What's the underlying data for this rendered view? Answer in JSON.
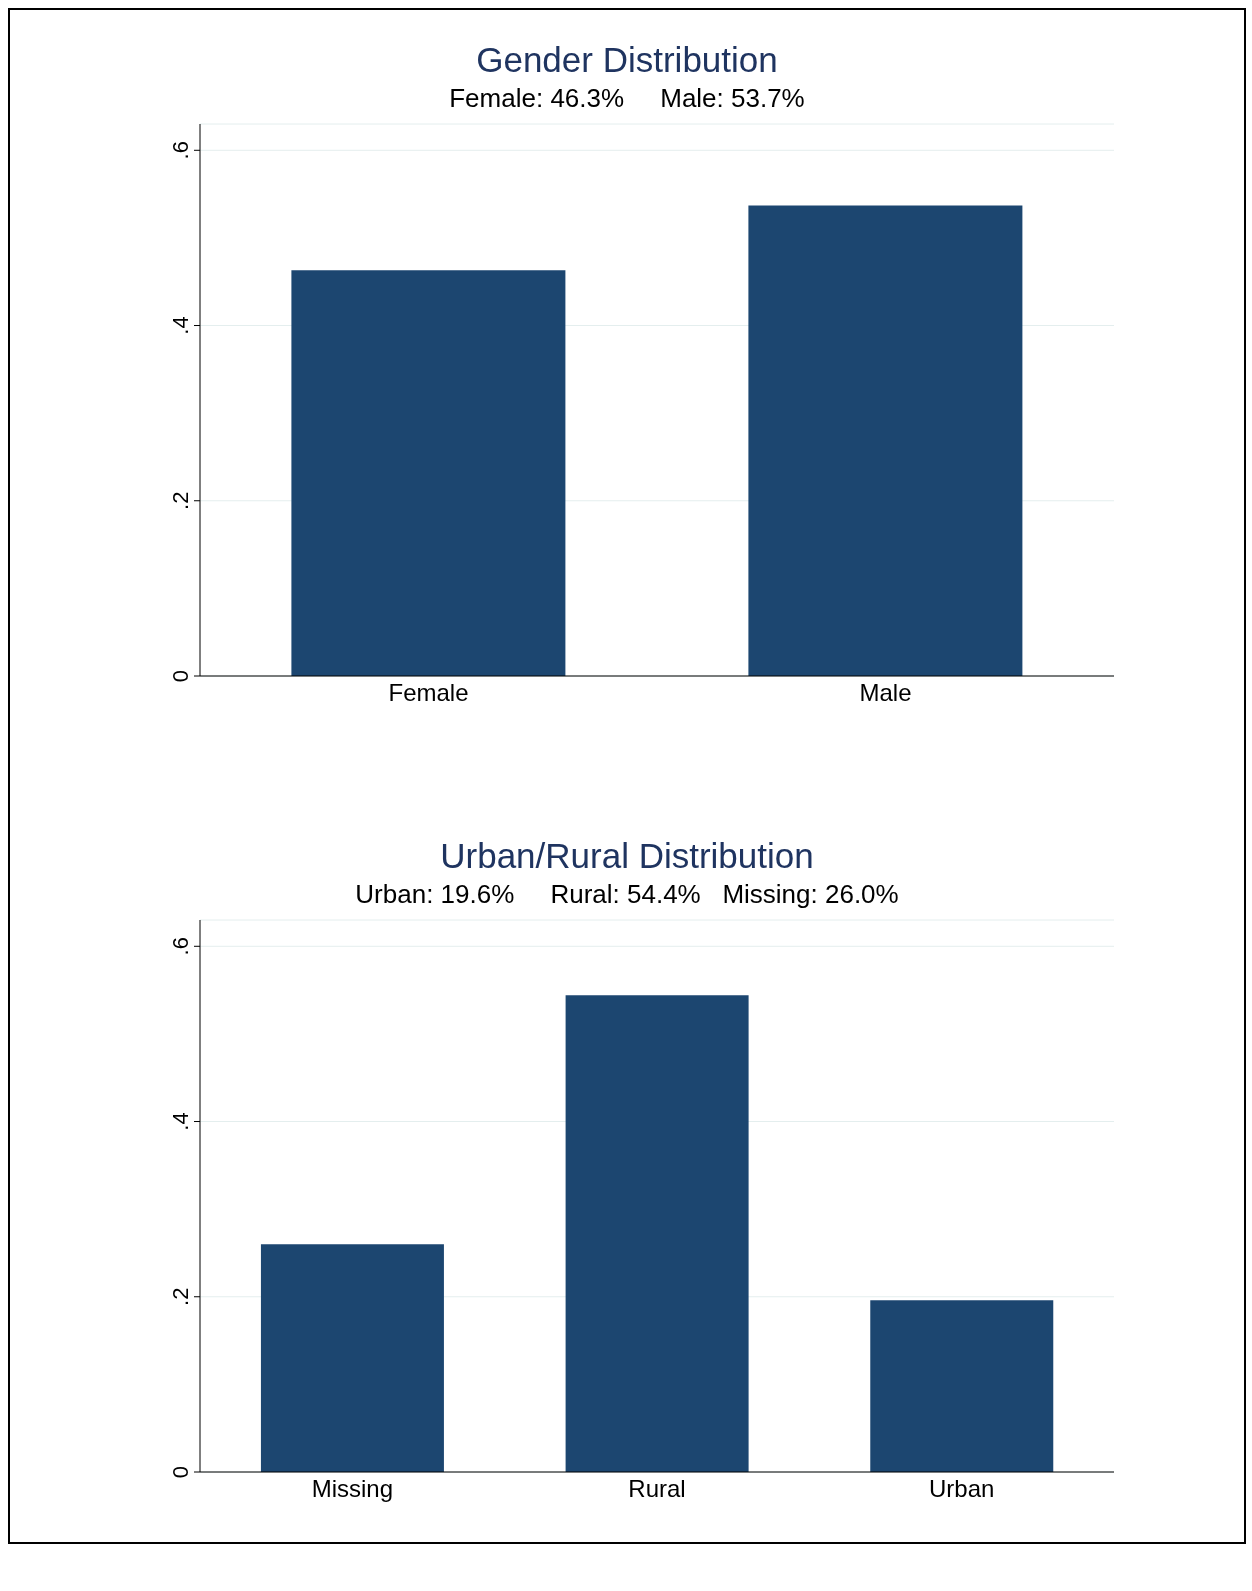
{
  "chart_data": [
    {
      "type": "bar",
      "title": "Gender Distribution",
      "subtitle": "Female: 46.3%     Male: 53.7%",
      "categories": [
        "Female",
        "Male"
      ],
      "values": [
        0.463,
        0.537
      ],
      "color": "#1c4670",
      "ylim": [
        0,
        0.63
      ],
      "yticks": [
        {
          "value": 0,
          "label": "0"
        },
        {
          "value": 0.2,
          "label": ".2"
        },
        {
          "value": 0.4,
          "label": ".4"
        },
        {
          "value": 0.6,
          "label": ".6"
        }
      ],
      "grid": "y"
    },
    {
      "type": "bar",
      "title": "Urban/Rural Distribution",
      "subtitle": "Urban: 19.6%     Rural: 54.4%   Missing: 26.0%",
      "categories": [
        "Missing",
        "Rural",
        "Urban"
      ],
      "values": [
        0.26,
        0.544,
        0.196
      ],
      "color": "#1c4670",
      "ylim": [
        0,
        0.63
      ],
      "yticks": [
        {
          "value": 0,
          "label": "0"
        },
        {
          "value": 0.2,
          "label": ".2"
        },
        {
          "value": 0.4,
          "label": ".4"
        },
        {
          "value": 0.6,
          "label": ".6"
        }
      ],
      "grid": "y"
    }
  ]
}
